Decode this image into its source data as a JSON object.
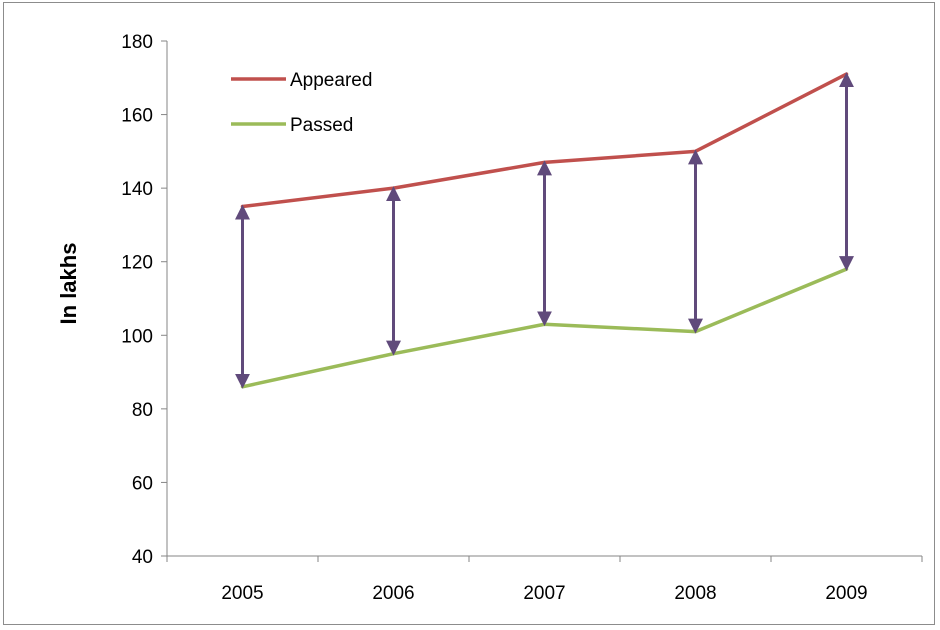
{
  "chart_data": {
    "type": "line",
    "title": "",
    "xlabel": "",
    "ylabel": "In lakhs",
    "categories": [
      "2005",
      "2006",
      "2007",
      "2008",
      "2009"
    ],
    "ylim": [
      40,
      180
    ],
    "yticks": [
      40,
      60,
      80,
      100,
      120,
      140,
      160,
      180
    ],
    "series": [
      {
        "name": "Appeared",
        "color": "#c0504d",
        "values": [
          135,
          140,
          147,
          150,
          171
        ]
      },
      {
        "name": "Passed",
        "color": "#9bbb59",
        "values": [
          86,
          95,
          103,
          101,
          118
        ]
      }
    ],
    "annotations": {
      "type": "double-headed-arrows",
      "color": "#604a7b",
      "description_of": "gap between Appeared and Passed per year"
    },
    "grid": false,
    "legend_position": "top-left"
  }
}
